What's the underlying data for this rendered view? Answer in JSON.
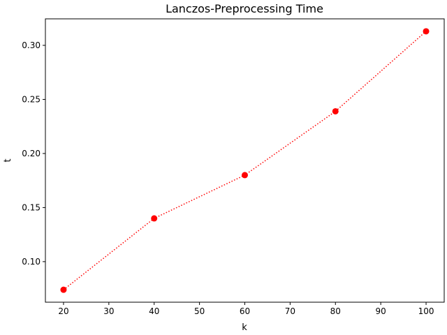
{
  "chart_data": {
    "type": "line",
    "title": "Lanczos-Preprocessing Time",
    "xlabel": "k",
    "ylabel": "t",
    "x": [
      20,
      40,
      60,
      80,
      100
    ],
    "series": [
      {
        "values": [
          0.074,
          0.14,
          0.18,
          0.239,
          0.313
        ],
        "color": "#ff0000",
        "line_style": "dotted",
        "marker": "circle"
      }
    ],
    "xlim": [
      16,
      104
    ],
    "ylim": [
      0.0625,
      0.3245
    ],
    "xticks": [
      20,
      30,
      40,
      50,
      60,
      70,
      80,
      90,
      100
    ],
    "yticks": [
      0.1,
      0.15,
      0.2,
      0.25,
      0.3
    ],
    "ytick_labels": [
      "0.10",
      "0.15",
      "0.20",
      "0.25",
      "0.30"
    ],
    "grid": false,
    "legend": false
  }
}
